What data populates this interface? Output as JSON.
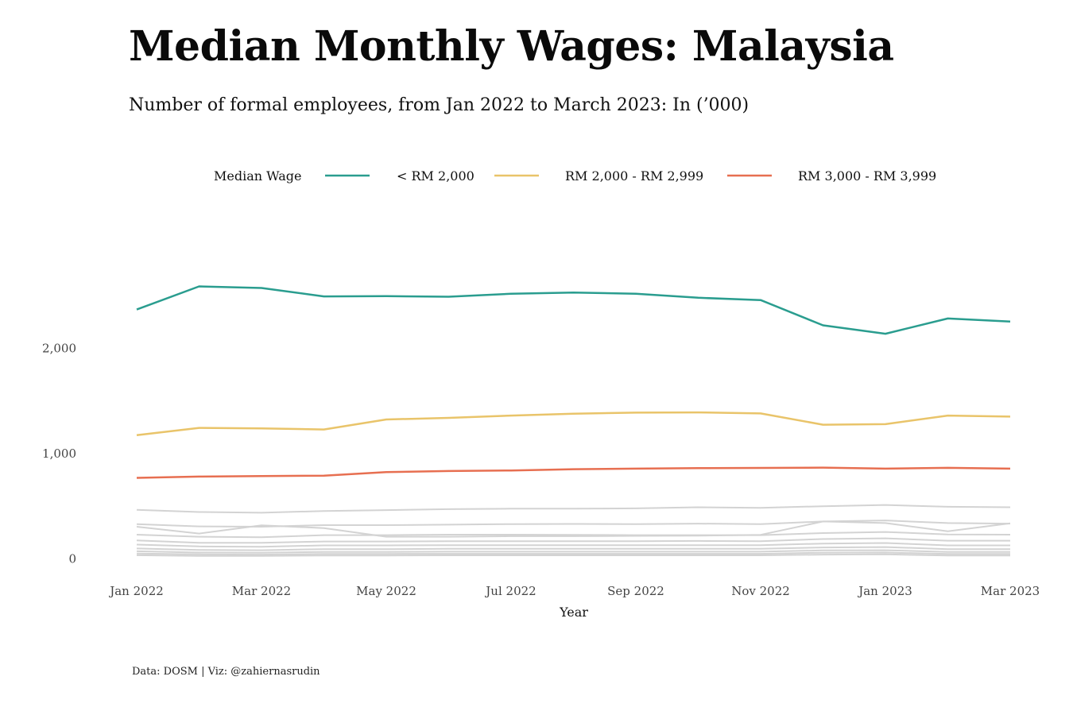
{
  "title": "Median Monthly Wages: Malaysia",
  "subtitle": "Number of formal employees, from Jan 2022 to March 2023: In (’000)",
  "caption": "Data: DOSM | Viz: @zahiernasrudin",
  "chart_data": {
    "type": "line",
    "xlabel": "Year",
    "ylabel": "",
    "x": [
      "Jan 2022",
      "Feb 2022",
      "Mar 2022",
      "Apr 2022",
      "May 2022",
      "Jun 2022",
      "Jul 2022",
      "Aug 2022",
      "Sep 2022",
      "Oct 2022",
      "Nov 2022",
      "Dec 2022",
      "Jan 2023",
      "Feb 2023",
      "Mar 2023"
    ],
    "x_tick_labels": [
      "Jan 2022",
      "Mar 2022",
      "May 2022",
      "Jul 2022",
      "Sep 2022",
      "Nov 2022",
      "Jan 2023",
      "Mar 2023"
    ],
    "y_ticks": [
      0,
      1000,
      2000
    ],
    "y_tick_labels": [
      "0",
      "1,000",
      "2,000"
    ],
    "ylim": [
      -80,
      3500
    ],
    "grid": false,
    "legend": {
      "title": "Median Wage",
      "placement": "top",
      "entries": [
        "< RM 2,000",
        "RM 2,000 - RM 2,999",
        "RM 3,000 - RM 3,999"
      ]
    },
    "series": [
      {
        "name": "< RM 2,000",
        "color": "#2a9d8f",
        "highlight": true,
        "values": [
          2370,
          2590,
          2575,
          2495,
          2497,
          2492,
          2520,
          2532,
          2520,
          2482,
          2460,
          2220,
          2140,
          2285,
          2255
        ]
      },
      {
        "name": "RM 2,000 - RM 2,999",
        "color": "#e9c46a",
        "highlight": true,
        "values": [
          1175,
          1245,
          1240,
          1230,
          1325,
          1340,
          1362,
          1380,
          1390,
          1392,
          1382,
          1275,
          1280,
          1362,
          1352
        ]
      },
      {
        "name": "RM 3,000 - RM 3,999",
        "color": "#e76f51",
        "highlight": true,
        "values": [
          770,
          782,
          787,
          790,
          825,
          835,
          840,
          852,
          857,
          862,
          864,
          867,
          857,
          865,
          857
        ]
      },
      {
        "color": "#d3d3d3",
        "highlight": false,
        "values": [
          465,
          445,
          438,
          455,
          463,
          472,
          477,
          477,
          480,
          490,
          485,
          500,
          512,
          495,
          490
        ]
      },
      {
        "color": "#d3d3d3",
        "highlight": false,
        "values": [
          330,
          308,
          305,
          320,
          320,
          325,
          330,
          332,
          330,
          335,
          330,
          355,
          365,
          340,
          335
        ]
      },
      {
        "color": "#d3d3d3",
        "highlight": false,
        "values": [
          305,
          240,
          318,
          292,
          210,
          210,
          215,
          215,
          218,
          220,
          228,
          355,
          340,
          262,
          338
        ]
      },
      {
        "color": "#d3d3d3",
        "highlight": false,
        "values": [
          230,
          210,
          205,
          225,
          225,
          230,
          230,
          228,
          225,
          225,
          225,
          245,
          255,
          232,
          230
        ]
      },
      {
        "color": "#d3d3d3",
        "highlight": false,
        "values": [
          175,
          152,
          152,
          165,
          165,
          168,
          168,
          168,
          168,
          170,
          168,
          188,
          195,
          172,
          172
        ]
      },
      {
        "color": "#d3d3d3",
        "highlight": false,
        "values": [
          135,
          118,
          115,
          128,
          128,
          130,
          130,
          130,
          130,
          130,
          130,
          145,
          150,
          128,
          128
        ]
      },
      {
        "color": "#d3d3d3",
        "highlight": false,
        "values": [
          98,
          85,
          82,
          92,
          92,
          95,
          95,
          95,
          95,
          95,
          95,
          108,
          112,
          92,
          92
        ]
      },
      {
        "color": "#d3d3d3",
        "highlight": false,
        "values": [
          72,
          60,
          58,
          66,
          66,
          68,
          68,
          68,
          68,
          68,
          68,
          80,
          82,
          66,
          66
        ]
      },
      {
        "color": "#d3d3d3",
        "highlight": false,
        "values": [
          50,
          42,
          40,
          47,
          47,
          48,
          48,
          48,
          48,
          48,
          48,
          58,
          60,
          46,
          46
        ]
      },
      {
        "color": "#d3d3d3",
        "highlight": false,
        "values": [
          34,
          28,
          27,
          32,
          32,
          33,
          33,
          33,
          33,
          33,
          33,
          40,
          42,
          31,
          31
        ]
      }
    ]
  }
}
